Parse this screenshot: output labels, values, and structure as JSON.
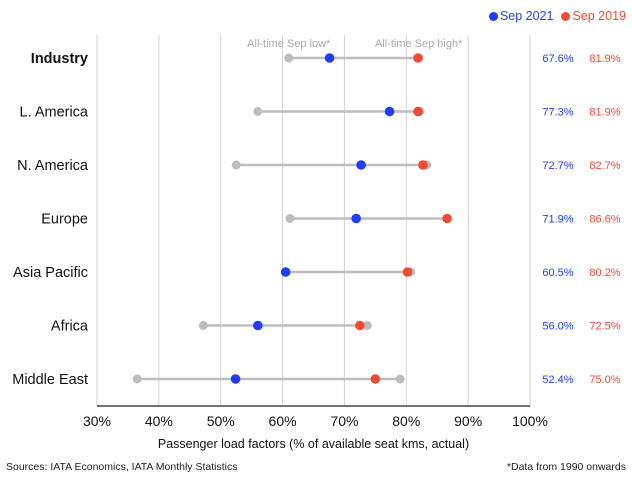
{
  "chart_data": {
    "type": "dumbbell",
    "xlabel": "Passenger load factors (% of available seat kms, actual)",
    "xlim": [
      30,
      100
    ],
    "xticks": [
      30,
      40,
      50,
      60,
      70,
      80,
      90,
      100
    ],
    "tick_suffix": "%",
    "annotation_low": "All-time Sep low*",
    "annotation_high": "All-time Sep high*",
    "legend": [
      {
        "label": "Sep 2021",
        "color": "#1f3cff"
      },
      {
        "label": "Sep 2019",
        "color": "#f04a35"
      }
    ],
    "range_color": "#bdbdbd",
    "rows": [
      {
        "label": "Industry",
        "bold": true,
        "low": 61.0,
        "high": 82.0,
        "sep2021": 67.6,
        "sep2019": 81.9,
        "label2021": "67.6%",
        "label2019": "81.9%"
      },
      {
        "label": "L. America",
        "bold": false,
        "low": 56.0,
        "high": 82.2,
        "sep2021": 77.3,
        "sep2019": 81.9,
        "label2021": "77.3%",
        "label2019": "81.9%"
      },
      {
        "label": "N. America",
        "bold": false,
        "low": 52.5,
        "high": 83.3,
        "sep2021": 72.7,
        "sep2019": 82.7,
        "label2021": "72.7%",
        "label2019": "82.7%"
      },
      {
        "label": "Europe",
        "bold": false,
        "low": 61.2,
        "high": 86.6,
        "sep2021": 71.9,
        "sep2019": 86.6,
        "label2021": "71.9%",
        "label2019": "86.6%"
      },
      {
        "label": "Asia Pacific",
        "bold": false,
        "low": 60.5,
        "high": 80.7,
        "sep2021": 60.5,
        "sep2019": 80.2,
        "label2021": "60.5%",
        "label2019": "80.2%"
      },
      {
        "label": "Africa",
        "bold": false,
        "low": 47.2,
        "high": 73.7,
        "sep2021": 56.0,
        "sep2019": 72.5,
        "label2021": "56.0%",
        "label2019": "72.5%"
      },
      {
        "label": "Middle East",
        "bold": false,
        "low": 36.5,
        "high": 79.0,
        "sep2021": 52.4,
        "sep2019": 75.0,
        "label2021": "52.4%",
        "label2019": "75.0%"
      }
    ]
  },
  "footer": {
    "sources": "Sources: IATA Economics, IATA Monthly Statistics",
    "note": "*Data from 1990 onwards"
  }
}
